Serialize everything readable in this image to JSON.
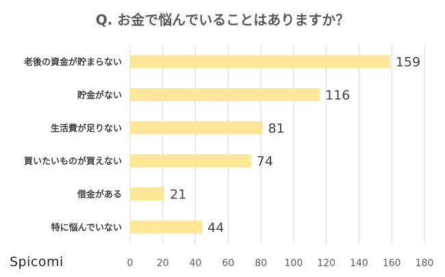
{
  "brand": "Spicomi",
  "chart_data": {
    "type": "bar",
    "orientation": "horizontal",
    "title": "Q. お金で悩んでいることはありますか？",
    "categories": [
      "老後の資金が貯まらない",
      "貯金がない",
      "生活費が足りない",
      "買いたいものが買えない",
      "借金がある",
      "特に悩んでいない"
    ],
    "values": [
      159,
      116,
      81,
      74,
      21,
      44
    ],
    "xlim": [
      0,
      180
    ],
    "xticks": [
      0,
      20,
      40,
      60,
      80,
      100,
      120,
      140,
      160,
      180
    ],
    "grid": "vertical",
    "bar_color": "#FFE699",
    "xlabel": "",
    "ylabel": ""
  }
}
